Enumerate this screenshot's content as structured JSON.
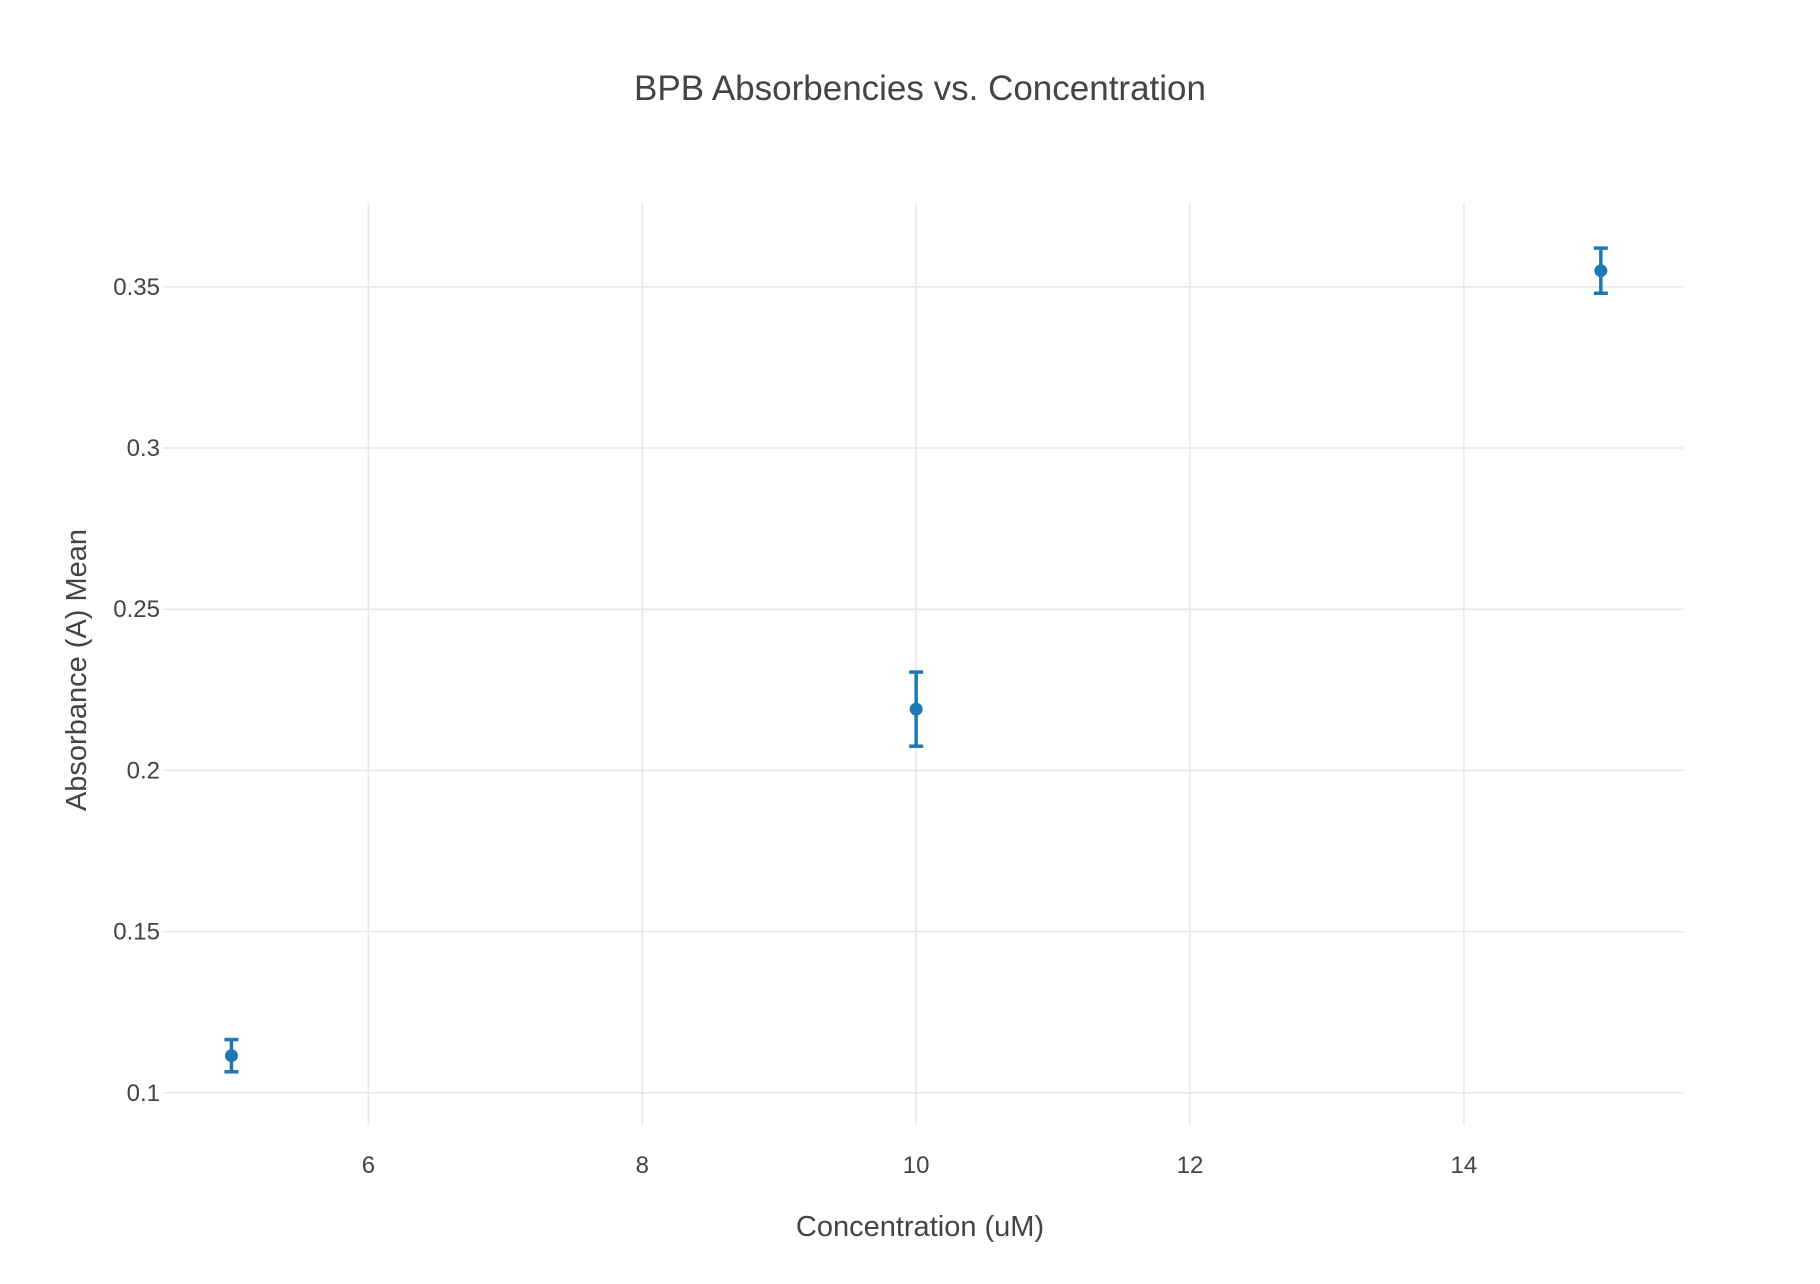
{
  "chart_data": {
    "type": "scatter",
    "title": "BPB Absorbencies vs. Concentration",
    "xlabel": "Concentration (uM)",
    "ylabel": "Absorbance (A) Mean",
    "xlim": [
      4.5,
      15.6
    ],
    "ylim": [
      0.09,
      0.376
    ],
    "x_ticks": [
      6,
      8,
      10,
      12,
      14
    ],
    "x_tick_labels": [
      "6",
      "8",
      "10",
      "12",
      "14"
    ],
    "y_ticks": [
      0.1,
      0.15,
      0.2,
      0.25,
      0.3,
      0.35
    ],
    "y_tick_labels": [
      "0.1",
      "0.15",
      "0.2",
      "0.25",
      "0.3",
      "0.35"
    ],
    "grid": true,
    "legend": "none",
    "series": [
      {
        "color": "#1f77b4",
        "x": [
          5,
          10,
          15
        ],
        "y": [
          0.1115,
          0.219,
          0.355
        ],
        "error": [
          0.005,
          0.0115,
          0.007
        ]
      }
    ]
  }
}
